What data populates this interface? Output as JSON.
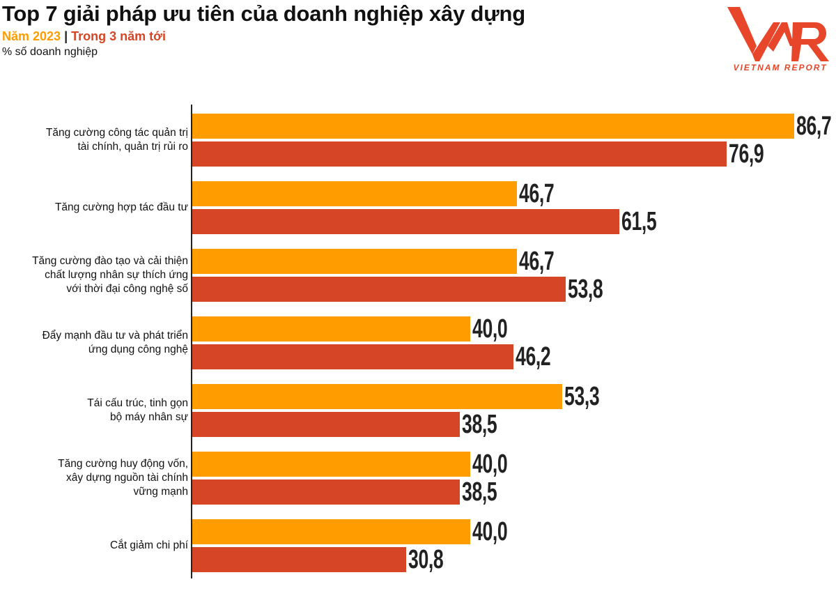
{
  "header": {
    "title": "Top 7 giải pháp ưu tiên của doanh nghiệp xây dựng",
    "series_1_label": "Năm 2023",
    "separator": "|",
    "series_2_label": "Trong 3 năm tới",
    "unit": "% số doanh nghiệp"
  },
  "logo": {
    "text": "VNR",
    "subtext": "VIETNAM REPORT",
    "color": "#E8462A"
  },
  "chart_data": {
    "type": "bar",
    "orientation": "horizontal",
    "title": "Top 7 giải pháp ưu tiên của doanh nghiệp xây dựng",
    "ylabel": "% số doanh nghiệp",
    "xlim": [
      0,
      100
    ],
    "grid": false,
    "categories": [
      [
        "Tăng cường công tác quản trị",
        "tài chính, quản trị rủi ro"
      ],
      [
        "Tăng cường hợp tác đầu tư"
      ],
      [
        "Tăng cường đào tạo và cải thiện",
        "chất lượng nhân sự thích ứng",
        "với thời đại công nghệ số"
      ],
      [
        "Đẩy mạnh đầu tư và phát triển",
        "ứng dụng công nghệ"
      ],
      [
        "Tái cấu trúc, tinh gọn",
        "bộ máy nhân sự"
      ],
      [
        "Tăng cường huy động vốn,",
        "xây dựng nguồn tài chính",
        "vững mạnh"
      ],
      [
        "Cắt giảm chi phí"
      ]
    ],
    "series": [
      {
        "name": "Năm 2023",
        "color": "#FF9C00",
        "values": [
          86.7,
          46.7,
          46.7,
          40.0,
          53.3,
          40.0,
          40.0
        ],
        "labels": [
          "86,7",
          "46,7",
          "46,7",
          "40,0",
          "53,3",
          "40,0",
          "40,0"
        ]
      },
      {
        "name": "Trong 3 năm tới",
        "color": "#D64525",
        "values": [
          76.9,
          61.5,
          53.8,
          46.2,
          38.5,
          38.5,
          30.8
        ],
        "labels": [
          "76,9",
          "61,5",
          "53,8",
          "46,2",
          "38,5",
          "38,5",
          "30,8"
        ]
      }
    ]
  }
}
